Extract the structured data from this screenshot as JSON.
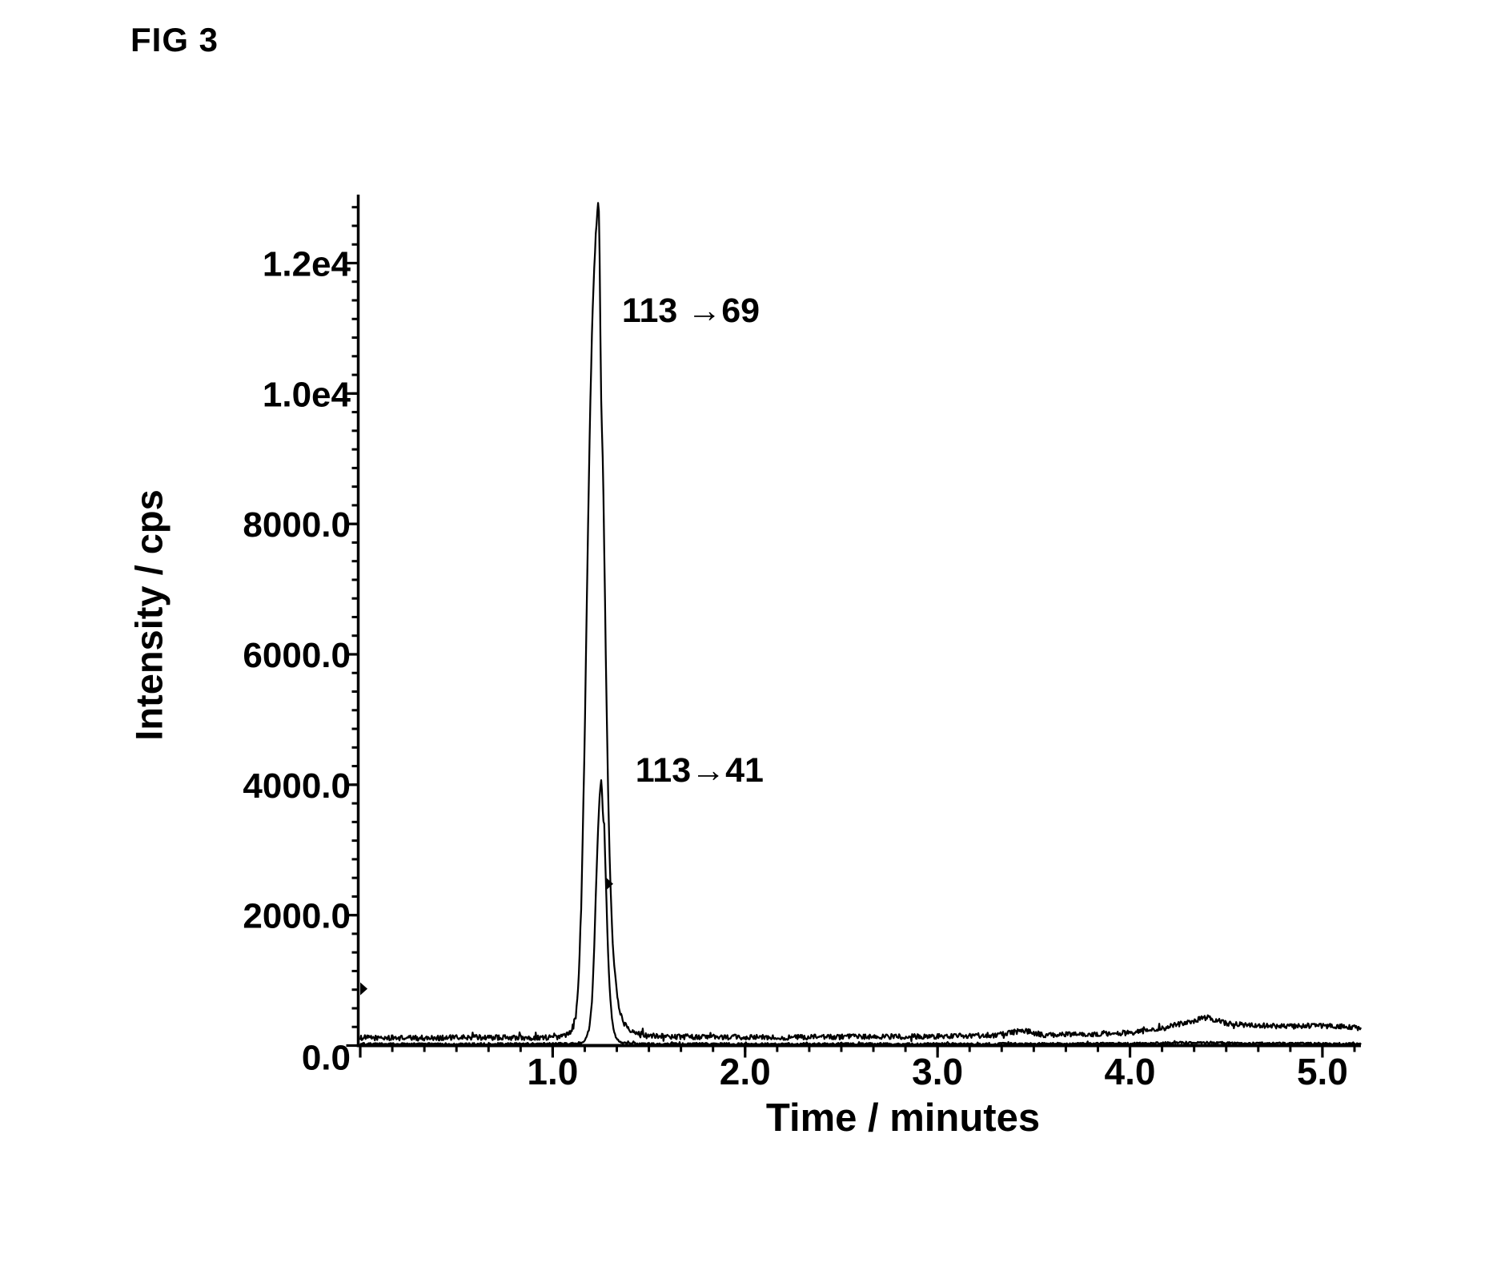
{
  "figure": {
    "label": "FIG 3"
  },
  "chart_data": {
    "type": "line",
    "title": "",
    "xlabel": "Time / minutes",
    "ylabel": "Intensity / cps",
    "xlim": [
      0,
      5.2
    ],
    "ylim": [
      0,
      13050
    ],
    "grid": false,
    "legend": "none",
    "background_color": "#ffffff",
    "line_color": "#000000",
    "x_ticks": [
      {
        "value": 0,
        "label": ""
      },
      {
        "value": 1.0,
        "label": "1.0"
      },
      {
        "value": 2.0,
        "label": "2.0"
      },
      {
        "value": 3.0,
        "label": "3.0"
      },
      {
        "value": 4.0,
        "label": "4.0"
      },
      {
        "value": 5.0,
        "label": "5.0"
      }
    ],
    "y_ticks": [
      {
        "value": 0,
        "label": "0.0"
      },
      {
        "value": 2000,
        "label": "2000.0"
      },
      {
        "value": 4000,
        "label": "4000.0"
      },
      {
        "value": 6000,
        "label": "6000.0"
      },
      {
        "value": 8000,
        "label": "8000.0"
      },
      {
        "value": 10000,
        "label": "1.0e4"
      },
      {
        "value": 12000,
        "label": "1.2e4"
      }
    ],
    "annotations": [
      {
        "text": "113 →69",
        "x": 1.36,
        "y": 11100
      },
      {
        "text": "113→41",
        "x": 1.43,
        "y": 4050
      }
    ],
    "markers": [
      {
        "shape": "right-triangle",
        "x": 0.0,
        "y": 870
      },
      {
        "shape": "right-triangle",
        "x": 1.277,
        "y": 2480
      }
    ],
    "series": [
      {
        "name": "113>69",
        "peak_retention_time_min": 1.24,
        "peak_height_cps": 13030,
        "baseline_noise_cps": 40,
        "points": [
          [
            0,
            120
          ],
          [
            0.3,
            115
          ],
          [
            0.6,
            125
          ],
          [
            0.9,
            120
          ],
          [
            1.0,
            125
          ],
          [
            1.05,
            140
          ],
          [
            1.08,
            170
          ],
          [
            1.1,
            250
          ],
          [
            1.12,
            480
          ],
          [
            1.135,
            1000
          ],
          [
            1.15,
            2300
          ],
          [
            1.165,
            4500
          ],
          [
            1.18,
            7300
          ],
          [
            1.195,
            9800
          ],
          [
            1.205,
            11000
          ],
          [
            1.215,
            11900
          ],
          [
            1.225,
            12500
          ],
          [
            1.232,
            12800
          ],
          [
            1.238,
            13030
          ],
          [
            1.243,
            12400
          ],
          [
            1.247,
            11200
          ],
          [
            1.252,
            9900
          ],
          [
            1.258,
            9200
          ],
          [
            1.262,
            8900
          ],
          [
            1.268,
            7600
          ],
          [
            1.275,
            6200
          ],
          [
            1.283,
            4700
          ],
          [
            1.291,
            3500
          ],
          [
            1.3,
            2500
          ],
          [
            1.31,
            1700
          ],
          [
            1.322,
            1150
          ],
          [
            1.335,
            760
          ],
          [
            1.35,
            500
          ],
          [
            1.37,
            350
          ],
          [
            1.4,
            250
          ],
          [
            1.44,
            190
          ],
          [
            1.5,
            160
          ],
          [
            1.6,
            140
          ],
          [
            1.8,
            130
          ],
          [
            2.2,
            125
          ],
          [
            2.6,
            135
          ],
          [
            3.0,
            140
          ],
          [
            3.3,
            160
          ],
          [
            3.45,
            230
          ],
          [
            3.55,
            160
          ],
          [
            3.8,
            175
          ],
          [
            4.0,
            195
          ],
          [
            4.15,
            250
          ],
          [
            4.3,
            360
          ],
          [
            4.4,
            430
          ],
          [
            4.5,
            340
          ],
          [
            4.62,
            310
          ],
          [
            4.8,
            295
          ],
          [
            5.0,
            305
          ],
          [
            5.1,
            290
          ],
          [
            5.2,
            275
          ]
        ]
      },
      {
        "name": "113>41",
        "peak_retention_time_min": 1.25,
        "peak_height_cps": 4100,
        "baseline_noise_cps": 16,
        "points": [
          [
            0,
            25
          ],
          [
            0.5,
            22
          ],
          [
            1.0,
            28
          ],
          [
            1.1,
            30
          ],
          [
            1.15,
            45
          ],
          [
            1.17,
            90
          ],
          [
            1.19,
            260
          ],
          [
            1.205,
            700
          ],
          [
            1.215,
            1400
          ],
          [
            1.225,
            2400
          ],
          [
            1.233,
            3100
          ],
          [
            1.24,
            3600
          ],
          [
            1.247,
            3950
          ],
          [
            1.253,
            4100
          ],
          [
            1.258,
            3800
          ],
          [
            1.262,
            3400
          ],
          [
            1.267,
            3520
          ],
          [
            1.272,
            2950
          ],
          [
            1.277,
            2480
          ],
          [
            1.283,
            1850
          ],
          [
            1.29,
            1250
          ],
          [
            1.298,
            780
          ],
          [
            1.307,
            430
          ],
          [
            1.317,
            230
          ],
          [
            1.33,
            120
          ],
          [
            1.345,
            60
          ],
          [
            1.37,
            38
          ],
          [
            1.45,
            28
          ],
          [
            2.0,
            24
          ],
          [
            2.5,
            26
          ],
          [
            3.0,
            25
          ],
          [
            3.5,
            28
          ],
          [
            4.0,
            30
          ],
          [
            4.35,
            48
          ],
          [
            4.6,
            35
          ],
          [
            5.0,
            30
          ],
          [
            5.2,
            28
          ]
        ]
      }
    ]
  }
}
